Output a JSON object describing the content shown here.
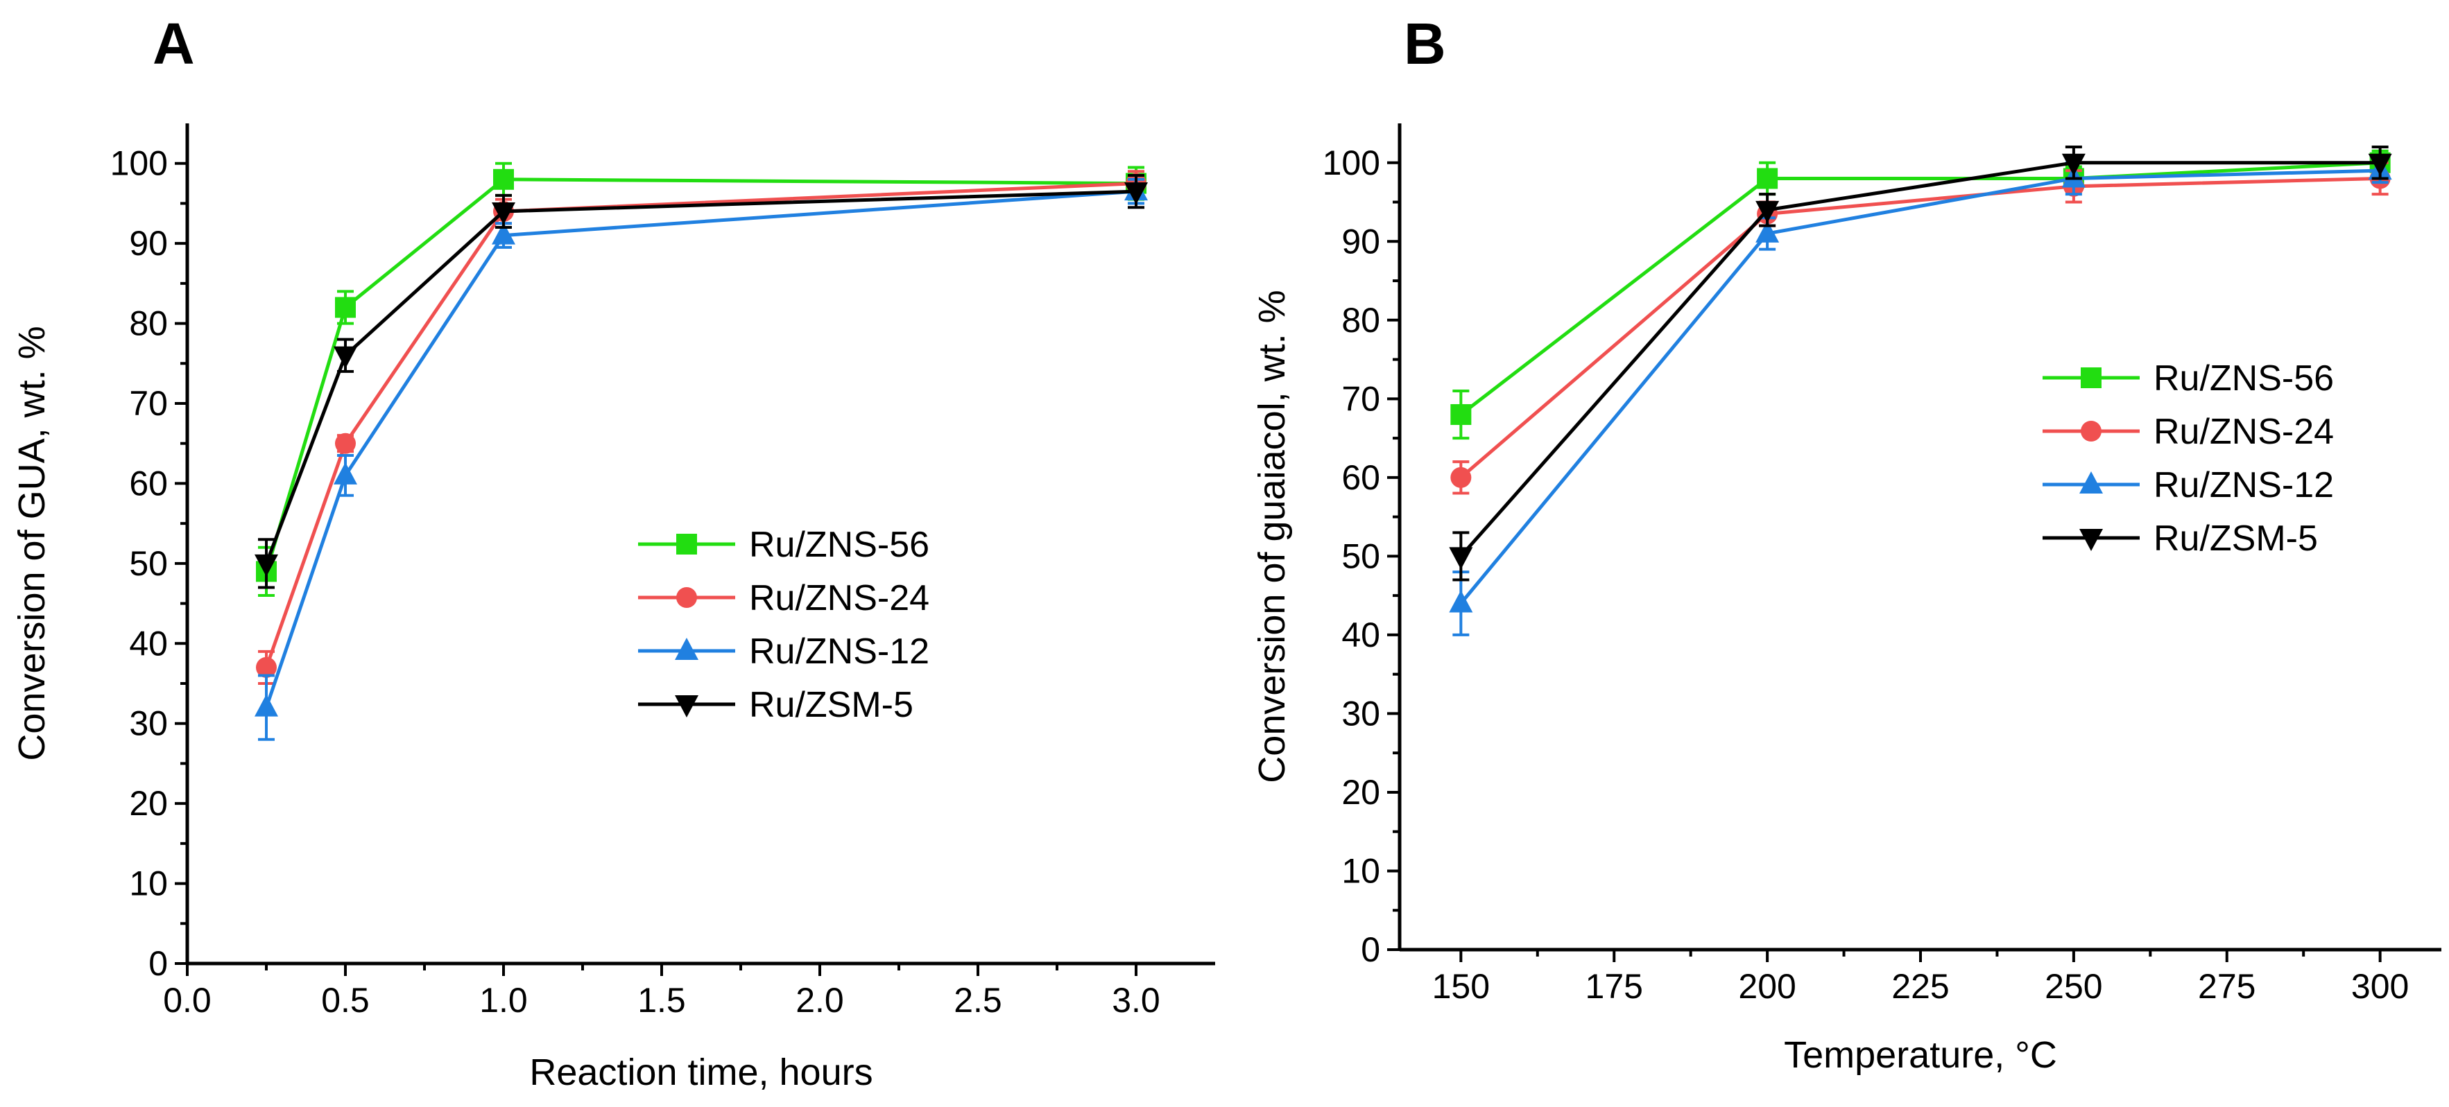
{
  "chart_data": [
    {
      "panel_label": "A",
      "type": "line",
      "title": "",
      "xlabel": "Reaction time, hours",
      "ylabel": "Conversion of GUA, wt. %",
      "xlim": [
        0.0,
        3.25
      ],
      "ylim": [
        0,
        105
      ],
      "x_ticks": [
        0.0,
        0.5,
        1.0,
        1.5,
        2.0,
        2.5,
        3.0
      ],
      "x_tick_labels": [
        "0.0",
        "0.5",
        "1.0",
        "1.5",
        "2.0",
        "2.5",
        "3.0"
      ],
      "y_ticks": [
        0,
        10,
        20,
        30,
        40,
        50,
        60,
        70,
        80,
        90,
        100
      ],
      "y_tick_labels": [
        "0",
        "10",
        "20",
        "30",
        "40",
        "50",
        "60",
        "70",
        "80",
        "90",
        "100"
      ],
      "legend_position": "center-right",
      "series": [
        {
          "name": "Ru/ZNS-56",
          "color": "#22dd11",
          "marker": "square",
          "x": [
            0.25,
            0.5,
            1.0,
            3.0
          ],
          "y": [
            49,
            82,
            98,
            97.5
          ],
          "err": [
            3,
            2,
            2,
            2
          ]
        },
        {
          "name": "Ru/ZNS-24",
          "color": "#f05050",
          "marker": "circle",
          "x": [
            0.25,
            0.5,
            1.0,
            3.0
          ],
          "y": [
            37,
            65,
            94,
            97.5
          ],
          "err": [
            2,
            1,
            1.5,
            1.5
          ]
        },
        {
          "name": "Ru/ZNS-12",
          "color": "#2080e0",
          "marker": "triangle-up",
          "x": [
            0.25,
            0.5,
            1.0,
            3.0
          ],
          "y": [
            32,
            61,
            91,
            96.5
          ],
          "err": [
            4,
            2.5,
            1.5,
            1.5
          ]
        },
        {
          "name": "Ru/ZSM-5",
          "color": "#000000",
          "marker": "triangle-down",
          "x": [
            0.25,
            0.5,
            1.0,
            3.0
          ],
          "y": [
            50,
            76,
            94,
            96.5
          ],
          "err": [
            3,
            2,
            2,
            2
          ]
        }
      ]
    },
    {
      "panel_label": "B",
      "type": "line",
      "title": "",
      "xlabel": "Temperature, °C",
      "ylabel": "Conversion of guaiacol, wt. %",
      "xlim": [
        140,
        310
      ],
      "ylim": [
        0,
        105
      ],
      "x_ticks": [
        150,
        175,
        200,
        225,
        250,
        275,
        300
      ],
      "x_tick_labels": [
        "150",
        "175",
        "200",
        "225",
        "250",
        "275",
        "300"
      ],
      "y_ticks": [
        0,
        10,
        20,
        30,
        40,
        50,
        60,
        70,
        80,
        90,
        100
      ],
      "y_tick_labels": [
        "0",
        "10",
        "20",
        "30",
        "40",
        "50",
        "60",
        "70",
        "80",
        "90",
        "100"
      ],
      "legend_position": "center-right",
      "series": [
        {
          "name": "Ru/ZNS-56",
          "color": "#22dd11",
          "marker": "square",
          "x": [
            150,
            200,
            250,
            300
          ],
          "y": [
            68,
            98,
            98,
            100
          ],
          "err": [
            3,
            2,
            1.5,
            1.5
          ]
        },
        {
          "name": "Ru/ZNS-24",
          "color": "#f05050",
          "marker": "circle",
          "x": [
            150,
            200,
            250,
            300
          ],
          "y": [
            60,
            93.5,
            97,
            98
          ],
          "err": [
            2,
            1.5,
            2,
            2
          ]
        },
        {
          "name": "Ru/ZNS-12",
          "color": "#2080e0",
          "marker": "triangle-up",
          "x": [
            150,
            200,
            250,
            300
          ],
          "y": [
            44,
            91,
            98,
            99
          ],
          "err": [
            4,
            2,
            2,
            1.5
          ]
        },
        {
          "name": "Ru/ZSM-5",
          "color": "#000000",
          "marker": "triangle-down",
          "x": [
            150,
            200,
            250,
            300
          ],
          "y": [
            50,
            94,
            100,
            100
          ],
          "err": [
            3,
            2,
            2,
            2
          ]
        }
      ]
    }
  ]
}
